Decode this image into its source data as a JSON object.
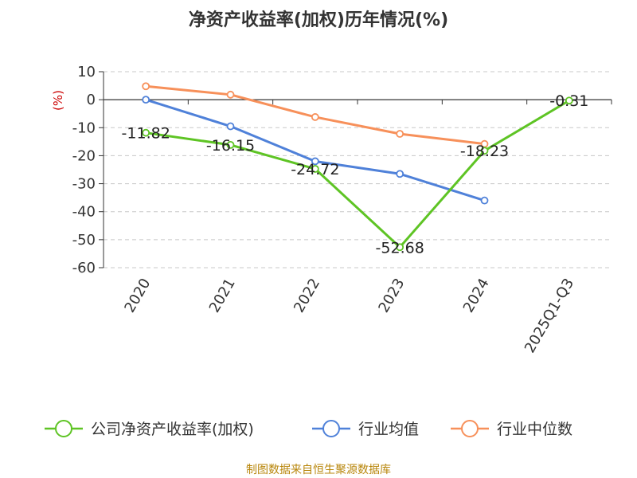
{
  "chart_data": {
    "type": "line",
    "title": "净资产收益率(加权)历年情况(%)",
    "ylabel": "(%)",
    "ylim": [
      -60,
      10
    ],
    "yticks": [
      10,
      0,
      -10,
      -20,
      -30,
      -40,
      -50,
      -60
    ],
    "categories": [
      "2020",
      "2021",
      "2022",
      "2023",
      "2024",
      "2025Q1-Q3"
    ],
    "grid": true,
    "legend_position": "bottom",
    "series": [
      {
        "name": "公司净资产收益率(加权)",
        "color": "#5ec424",
        "values": [
          -11.82,
          -16.15,
          -24.72,
          -52.68,
          -18.23,
          -0.31
        ],
        "labels": [
          "-11.82",
          "-16.15",
          "-24.72",
          "-52.68",
          "-18.23",
          "-0.31"
        ]
      },
      {
        "name": "行业均值",
        "color": "#4f81d9",
        "values": [
          0.0,
          -9.5,
          -22.0,
          -26.5,
          -36.0,
          null
        ]
      },
      {
        "name": "行业中位数",
        "color": "#f7905a",
        "values": [
          4.8,
          1.8,
          -6.2,
          -12.2,
          -15.8,
          null
        ]
      }
    ]
  },
  "footer": {
    "source": "制图数据来自恒生聚源数据库"
  }
}
